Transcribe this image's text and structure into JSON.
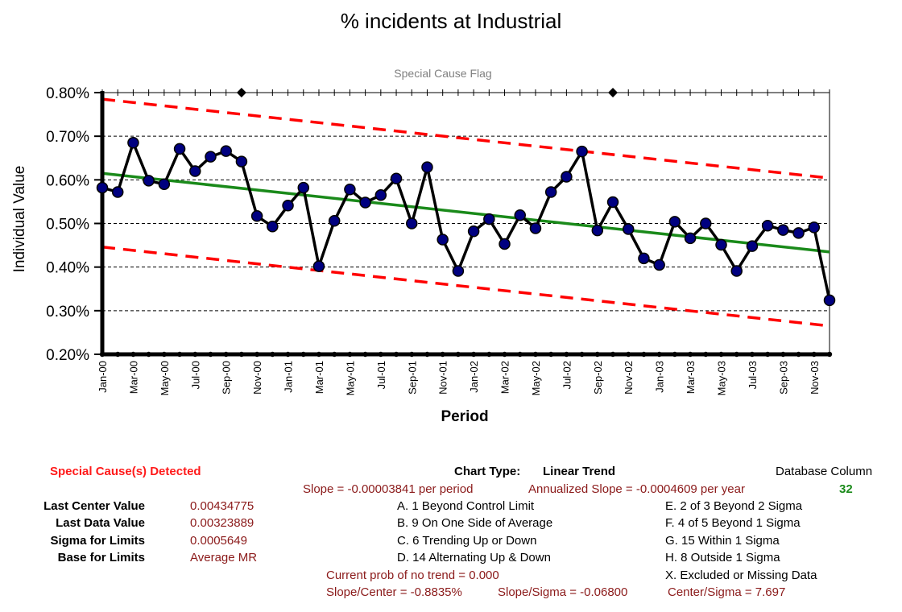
{
  "chart_data": {
    "type": "line",
    "title": "% incidents at Industrial",
    "subtitle": "Special Cause Flag",
    "xlabel": "Period",
    "ylabel": "Individual Value",
    "ylim": [
      0.002,
      0.008
    ],
    "y_ticks": [
      "0.80%",
      "0.70%",
      "0.60%",
      "0.50%",
      "0.40%",
      "0.30%",
      "0.20%"
    ],
    "y_tick_values": [
      0.008,
      0.007,
      0.006,
      0.005,
      0.004,
      0.003,
      0.002
    ],
    "x_tick_labels": [
      "Jan-00",
      "Mar-00",
      "May-00",
      "Jul-00",
      "Sep-00",
      "Nov-00",
      "Jan-01",
      "Mar-01",
      "May-01",
      "Jul-01",
      "Sep-01",
      "Nov-01",
      "Jan-02",
      "Mar-02",
      "May-02",
      "Jul-02",
      "Sep-02",
      "Nov-02",
      "Jan-03",
      "Mar-03",
      "May-03",
      "Jul-03",
      "Sep-03",
      "Nov-03"
    ],
    "grid": "horizontal dashed",
    "series": [
      {
        "values": [
          0.00582,
          0.00572,
          0.00685,
          0.00598,
          0.0059,
          0.00671,
          0.0062,
          0.00653,
          0.00666,
          0.00642,
          0.00517,
          0.00493,
          0.00541,
          0.00582,
          0.00402,
          0.00506,
          0.00578,
          0.00548,
          0.00565,
          0.00603,
          0.005,
          0.00629,
          0.00463,
          0.00391,
          0.00482,
          0.0051,
          0.00453,
          0.00519,
          0.00489,
          0.00572,
          0.00607,
          0.00665,
          0.00484,
          0.00549,
          0.00487,
          0.0042,
          0.00405,
          0.00504,
          0.00466,
          0.005,
          0.00451,
          0.00391,
          0.00448,
          0.00495,
          0.00485,
          0.00478,
          0.00491,
          0.00323889
        ],
        "color": "#000000",
        "marker_color": "#000080"
      }
    ],
    "center_line": {
      "start": 0.00615,
      "end": 0.00434775,
      "color": "#1a8a1a"
    },
    "upper_limit": {
      "start": 0.00785,
      "end": 0.00604,
      "color": "#ff0000"
    },
    "lower_limit": {
      "start": 0.00446,
      "end": 0.00265,
      "color": "#ff0000"
    },
    "special_cause_flags": [
      9,
      33
    ]
  },
  "stats": {
    "special_cause": "Special Cause(s) Detected",
    "chart_type_label": "Chart Type:",
    "chart_type_value": "Linear Trend",
    "db_column_label": "Database Column",
    "db_column_value": "32",
    "slope": "Slope = -0.00003841 per period",
    "annualized_slope": "Annualized Slope = -0.0004609 per year",
    "last_center_label": "Last Center Value",
    "last_center_value": "0.00434775",
    "last_data_label": "Last Data Value",
    "last_data_value": "0.00323889",
    "sigma_label": "Sigma for Limits",
    "sigma_value": "0.0005649",
    "base_label": "Base for Limits",
    "base_value": "Average MR",
    "rule_a": "A.  1 Beyond Control Limit",
    "rule_b": "B.  9 On One Side of Average",
    "rule_c": "C.  6 Trending Up or Down",
    "rule_d": "D.  14 Alternating  Up & Down",
    "rule_e": "E.  2 of 3 Beyond 2 Sigma",
    "rule_f": "F.  4 of 5 Beyond 1 Sigma",
    "rule_g": "G.  15 Within 1 Sigma",
    "rule_h": "H.  8 Outside 1 Sigma",
    "rule_x": "X.  Excluded or Missing Data",
    "prob_trend": "Current prob of no trend = 0.000",
    "slope_center": "Slope/Center = -0.8835%",
    "slope_sigma": "Slope/Sigma = -0.06800",
    "center_sigma": "Center/Sigma = 7.697"
  }
}
